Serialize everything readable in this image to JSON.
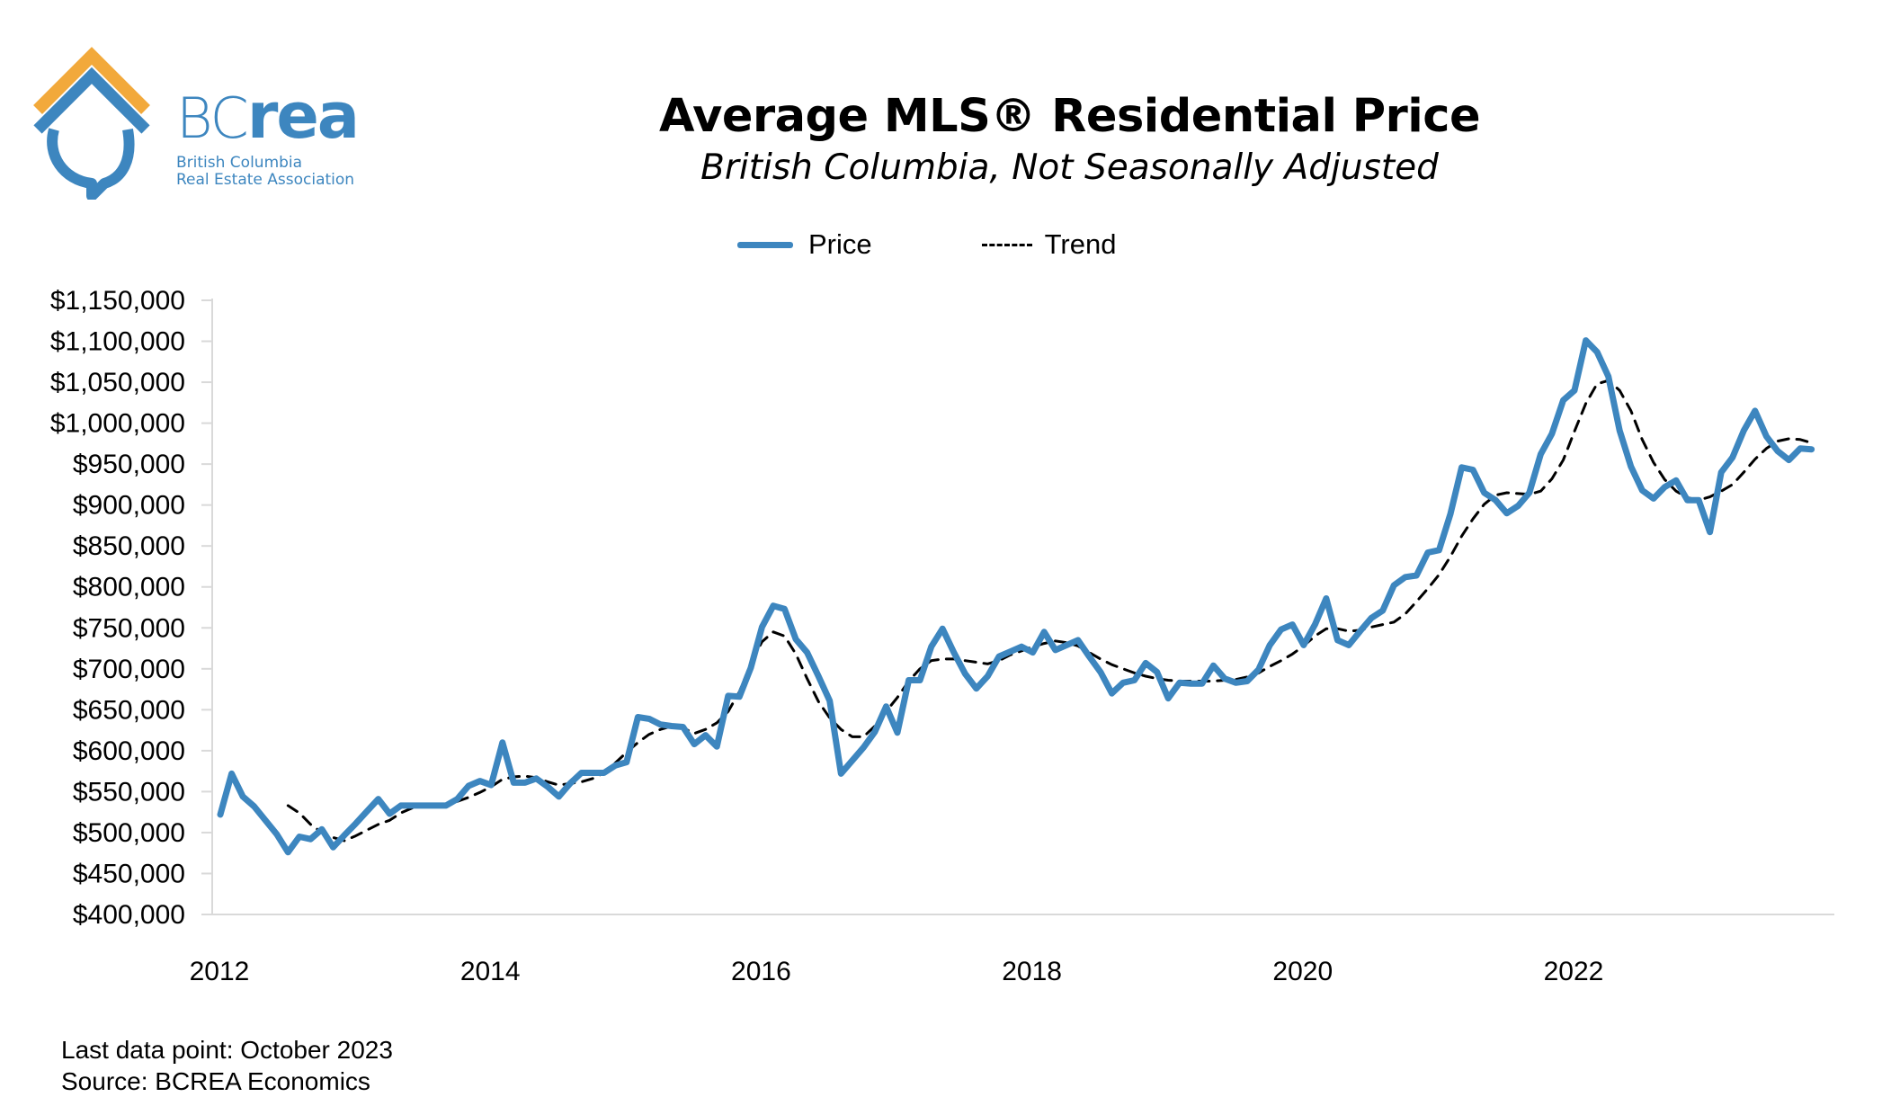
{
  "logo": {
    "word_bc": "BC",
    "word_rea": "rea",
    "line1": "British Columbia",
    "line2": "Real Estate Association",
    "colors": {
      "blue": "#3d86bf",
      "orange": "#f2a93b"
    }
  },
  "footer": {
    "last_data_point": "Last data point: October 2023",
    "source": "Source: BCREA Economics"
  },
  "chart_data": {
    "type": "line",
    "title": "Average MLS® Residential Price",
    "subtitle": "British Columbia, Not Seasonally Adjusted",
    "xlabel": "",
    "ylabel": "",
    "legend": {
      "placement": "top-center",
      "entries": [
        "Price",
        "Trend"
      ]
    },
    "ylim": [
      400000,
      1150000
    ],
    "yticks": [
      400000,
      450000,
      500000,
      550000,
      600000,
      650000,
      700000,
      750000,
      800000,
      850000,
      900000,
      950000,
      1000000,
      1050000,
      1100000,
      1150000
    ],
    "ytick_labels": [
      "$400,000",
      "$450,000",
      "$500,000",
      "$550,000",
      "$600,000",
      "$650,000",
      "$700,000",
      "$750,000",
      "$800,000",
      "$850,000",
      "$900,000",
      "$950,000",
      "$1,000,000",
      "$1,050,000",
      "$1,100,000",
      "$1,150,000"
    ],
    "xticks": [
      "2012",
      "2014",
      "2016",
      "2018",
      "2020",
      "2022"
    ],
    "x_start": "2012-01",
    "x_end": "2023-10",
    "frequency": "monthly",
    "grid": false,
    "series": [
      {
        "name": "Price",
        "color": "#3d86bf",
        "style": "solid",
        "start": "2012-01",
        "values": [
          522000,
          572000,
          544000,
          532000,
          515000,
          498000,
          476000,
          495000,
          492000,
          504000,
          482000,
          497000,
          511000,
          526000,
          541000,
          523000,
          533000,
          533000,
          533000,
          533000,
          533000,
          541000,
          557000,
          563000,
          558000,
          610000,
          561000,
          561000,
          566000,
          556000,
          544000,
          560000,
          573000,
          573000,
          573000,
          582000,
          586000,
          641000,
          639000,
          632000,
          630000,
          629000,
          608000,
          619000,
          605000,
          667000,
          666000,
          701000,
          751000,
          777000,
          773000,
          736000,
          720000,
          691000,
          661000,
          572000,
          588000,
          604000,
          623000,
          654000,
          622000,
          686000,
          686000,
          727000,
          749000,
          720000,
          694000,
          676000,
          691000,
          715000,
          721000,
          727000,
          720000,
          745000,
          723000,
          729000,
          735000,
          715000,
          696000,
          670000,
          683000,
          686000,
          707000,
          696000,
          664000,
          683000,
          682000,
          682000,
          704000,
          688000,
          683000,
          685000,
          699000,
          729000,
          748000,
          754000,
          729000,
          754000,
          786000,
          735000,
          729000,
          746000,
          762000,
          771000,
          802000,
          812000,
          814000,
          842000,
          845000,
          889000,
          946000,
          943000,
          915000,
          906000,
          890000,
          899000,
          915000,
          962000,
          987000,
          1028000,
          1040000,
          1101000,
          1087000,
          1057000,
          991000,
          947000,
          918000,
          908000,
          922000,
          930000,
          906000,
          906000,
          867000,
          940000,
          958000,
          991000,
          1015000,
          984000,
          966000,
          955000,
          969000,
          968000
        ]
      },
      {
        "name": "Trend",
        "color": "#000000",
        "style": "dashed",
        "start": "2012-07",
        "values": [
          533000,
          524000,
          510000,
          500000,
          494000,
          490000,
          496000,
          503000,
          510000,
          515000,
          524000,
          530000,
          533000,
          534000,
          535000,
          538000,
          543000,
          549000,
          556000,
          565000,
          568000,
          569000,
          567000,
          562000,
          558000,
          560000,
          562000,
          566000,
          573000,
          585000,
          598000,
          610000,
          620000,
          626000,
          630000,
          628000,
          621000,
          626000,
          634000,
          648000,
          672000,
          706000,
          733000,
          745000,
          740000,
          718000,
          688000,
          660000,
          640000,
          626000,
          617000,
          617000,
          630000,
          648000,
          665000,
          685000,
          700000,
          710000,
          712000,
          712000,
          710000,
          708000,
          706000,
          710000,
          717000,
          722000,
          727000,
          731000,
          734000,
          732000,
          728000,
          720000,
          712000,
          705000,
          700000,
          695000,
          691000,
          688000,
          686000,
          685000,
          685000,
          685000,
          685000,
          686000,
          687000,
          690000,
          695000,
          703000,
          710000,
          718000,
          728000,
          740000,
          749000,
          749000,
          746000,
          747000,
          751000,
          754000,
          757000,
          767000,
          782000,
          798000,
          815000,
          837000,
          862000,
          883000,
          901000,
          912000,
          915000,
          914000,
          913000,
          917000,
          932000,
          955000,
          990000,
          1024000,
          1048000,
          1052000,
          1040000,
          1015000,
          980000,
          952000,
          931000,
          917000,
          909000,
          906000,
          910000,
          917000,
          925000,
          940000,
          956000,
          969000,
          978000,
          981000,
          980000,
          976000
        ]
      }
    ]
  }
}
